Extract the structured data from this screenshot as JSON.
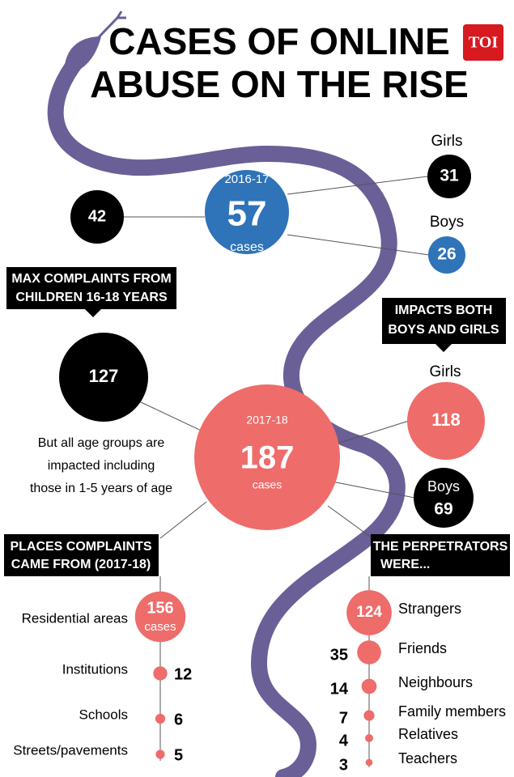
{
  "header": {
    "title_lines": [
      "CASES OF ONLINE",
      "ABUSE ON THE RISE"
    ],
    "logo": "TOI"
  },
  "year1": {
    "label": "2016-17",
    "total": 57,
    "unit": "cases",
    "girls_label": "Girls",
    "girls": 31,
    "boys_label": "Boys",
    "boys": 26,
    "age_16_18": 42
  },
  "callout1": [
    "MAX COMPLAINTS FROM",
    "CHILDREN 16-18 YEARS"
  ],
  "callout2": [
    "IMPACTS BOTH",
    "BOYS AND GIRLS"
  ],
  "year2": {
    "label": "2017-18",
    "total": 187,
    "unit": "cases",
    "girls_label": "Girls",
    "girls": 118,
    "boys_label": "Boys",
    "boys": 69,
    "age_16_18": 127,
    "note": [
      "But all age groups are",
      "impacted including",
      "those in 1-5 years of age"
    ]
  },
  "places": {
    "title": [
      "PLACES COMPLAINTS",
      "CAME FROM (2017-18)"
    ],
    "items": [
      {
        "label": "Residential areas",
        "value": 156,
        "unit": "cases"
      },
      {
        "label": "Institutions",
        "value": 12
      },
      {
        "label": "Schools",
        "value": 6
      },
      {
        "label": "Streets/pavements",
        "value": 5
      }
    ]
  },
  "perpetrators": {
    "title": [
      "THE PERPETRATORS",
      "WERE..."
    ],
    "items": [
      {
        "label": "Strangers",
        "value": 124
      },
      {
        "label": "Friends",
        "value": 35
      },
      {
        "label": "Neighbours",
        "value": 14
      },
      {
        "label": "Family members",
        "value": 7
      },
      {
        "label": "Relatives",
        "value": 4
      },
      {
        "label": "Teachers",
        "value": 3
      }
    ]
  }
}
